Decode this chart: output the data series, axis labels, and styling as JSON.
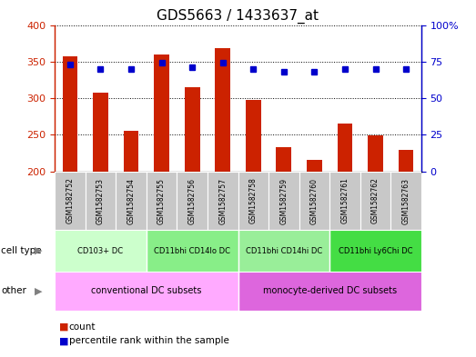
{
  "title": "GDS5663 / 1433637_at",
  "samples": [
    "GSM1582752",
    "GSM1582753",
    "GSM1582754",
    "GSM1582755",
    "GSM1582756",
    "GSM1582757",
    "GSM1582758",
    "GSM1582759",
    "GSM1582760",
    "GSM1582761",
    "GSM1582762",
    "GSM1582763"
  ],
  "counts": [
    357,
    307,
    256,
    360,
    315,
    368,
    297,
    233,
    216,
    265,
    249,
    229
  ],
  "percentiles": [
    73,
    70,
    70,
    74,
    71,
    74,
    70,
    68,
    68,
    70,
    70,
    70
  ],
  "ylim_left": [
    200,
    400
  ],
  "ylim_right": [
    0,
    100
  ],
  "yticks_left": [
    200,
    250,
    300,
    350,
    400
  ],
  "yticks_right": [
    0,
    25,
    50,
    75,
    100
  ],
  "bar_color": "#cc2200",
  "dot_color": "#0000cc",
  "cell_type_groups": [
    {
      "label": "CD103+ DC",
      "start": 0,
      "end": 3,
      "color": "#ccffcc"
    },
    {
      "label": "CD11bhi CD14lo DC",
      "start": 3,
      "end": 6,
      "color": "#88ee88"
    },
    {
      "label": "CD11bhi CD14hi DC",
      "start": 6,
      "end": 9,
      "color": "#99ee99"
    },
    {
      "label": "CD11bhi Ly6Chi DC",
      "start": 9,
      "end": 12,
      "color": "#44dd44"
    }
  ],
  "other_groups": [
    {
      "label": "conventional DC subsets",
      "start": 0,
      "end": 6,
      "color": "#ffaaff"
    },
    {
      "label": "monocyte-derived DC subsets",
      "start": 6,
      "end": 12,
      "color": "#dd66dd"
    }
  ],
  "tick_bg_color": "#c8c8c8",
  "legend_count_color": "#cc2200",
  "legend_dot_color": "#0000cc"
}
